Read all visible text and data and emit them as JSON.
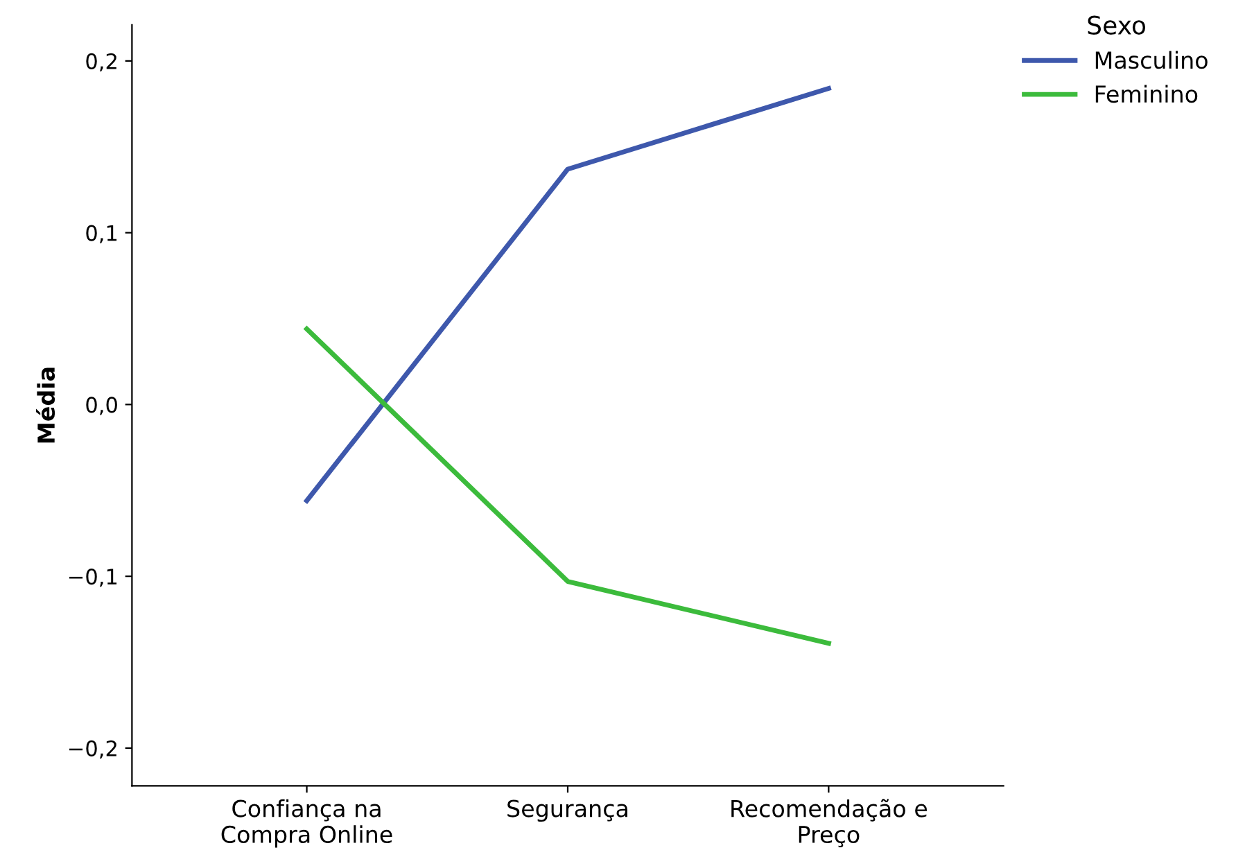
{
  "chart_data": {
    "type": "line",
    "ylabel": "Média",
    "legend_title": "Sexo",
    "legend": "top right",
    "categories": [
      "Confiança na\nCompra Online",
      "Segurança",
      "Recomendação e\nPreço"
    ],
    "series": [
      {
        "name": "Masculino",
        "color": "#3e58ac",
        "values": [
          -0.056,
          0.137,
          0.184
        ]
      },
      {
        "name": "Feminino",
        "color": "#3cbb3c",
        "values": [
          0.044,
          -0.103,
          -0.139
        ]
      }
    ],
    "ylim": [
      -0.222,
      0.221
    ],
    "yticks": [
      {
        "value": -0.2,
        "label": "−0,2"
      },
      {
        "value": -0.1,
        "label": "−0,1"
      },
      {
        "value": 0.0,
        "label": "0,0"
      },
      {
        "value": 0.1,
        "label": "0,1"
      },
      {
        "value": 0.2,
        "label": "0,2"
      }
    ],
    "grid": false,
    "marker": "none",
    "line_style": "solid"
  }
}
